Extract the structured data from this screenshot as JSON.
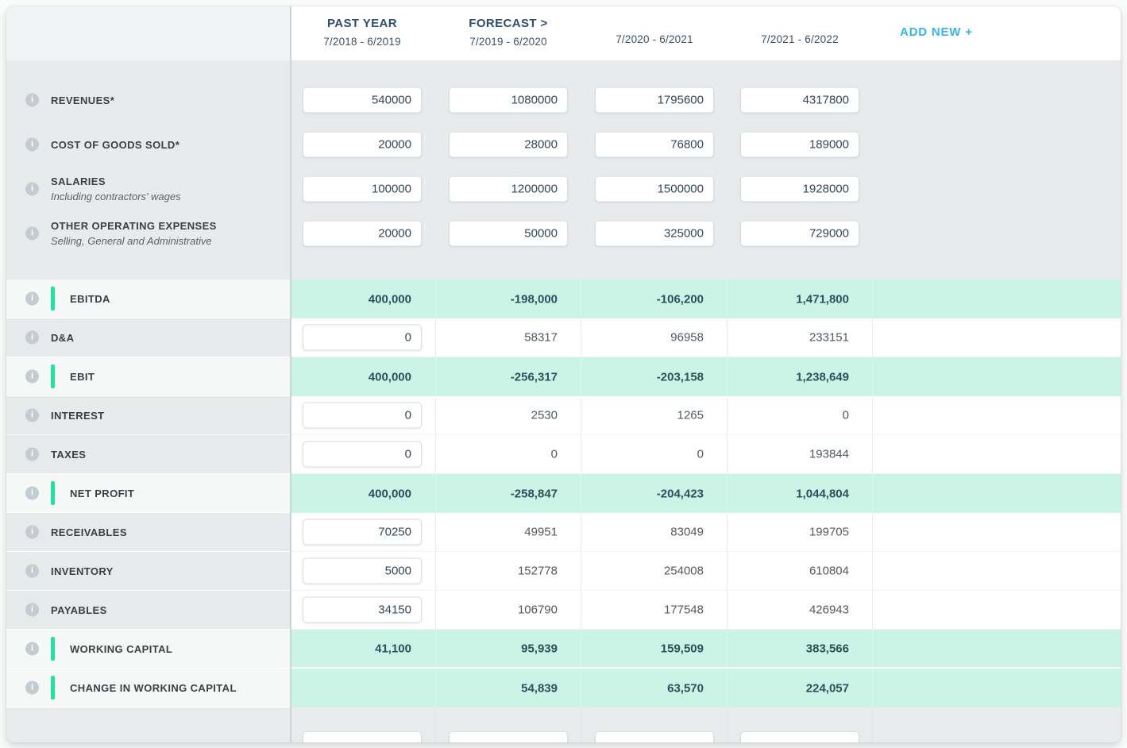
{
  "header": {
    "columns": [
      {
        "title": "PAST YEAR",
        "subtitle": "7/2018 - 6/2019"
      },
      {
        "title": "FORECAST >",
        "subtitle": "7/2019 - 6/2020"
      },
      {
        "title": "",
        "subtitle": "7/2020 - 6/2021"
      },
      {
        "title": "",
        "subtitle": "7/2021 - 6/2022"
      }
    ],
    "add_new_label": "ADD NEW +"
  },
  "colors": {
    "mint_row_bg": "#c9f4e6",
    "computed_accent_bar": "#21e2a2",
    "add_new_cyan": "#38b4e8",
    "header_navy": "#2d4e6e",
    "mint_value_text": "#2e4f5c",
    "section_gray_bg": "#e8ebec",
    "sidebar_highlight_bg": "#f6f8f8"
  },
  "rows": [
    {
      "id": "revenues",
      "label": "REVENUES*",
      "type": "input",
      "values": [
        "540000",
        "1080000",
        "1795600",
        "4317800"
      ]
    },
    {
      "id": "cost-of-goods-sold",
      "label": "COST OF GOODS SOLD*",
      "type": "input",
      "values": [
        "20000",
        "28000",
        "76800",
        "189000"
      ]
    },
    {
      "id": "salaries",
      "label": "SALARIES",
      "sublabel": "Including contractors' wages",
      "type": "input",
      "values": [
        "100000",
        "1200000",
        "1500000",
        "1928000"
      ]
    },
    {
      "id": "other-operating-expenses",
      "label": "OTHER OPERATING EXPENSES",
      "sublabel": "Selling, General and Administrative",
      "type": "input",
      "values": [
        "20000",
        "50000",
        "325000",
        "729000"
      ]
    },
    {
      "id": "ebitda",
      "label": "EBITDA",
      "type": "computed",
      "values": [
        "400,000",
        "-198,000",
        "-106,200",
        "1,471,800"
      ]
    },
    {
      "id": "d-and-a",
      "label": "D&A",
      "type": "mixed",
      "input_value": "0",
      "values": [
        "58317",
        "96958",
        "233151"
      ]
    },
    {
      "id": "ebit",
      "label": "EBIT",
      "type": "computed",
      "values": [
        "400,000",
        "-256,317",
        "-203,158",
        "1,238,649"
      ]
    },
    {
      "id": "interest",
      "label": "INTEREST",
      "type": "mixed",
      "input_value": "0",
      "values": [
        "2530",
        "1265",
        "0"
      ]
    },
    {
      "id": "taxes",
      "label": "TAXES",
      "type": "mixed",
      "input_value": "0",
      "values": [
        "0",
        "0",
        "193844"
      ]
    },
    {
      "id": "net-profit",
      "label": "NET PROFIT",
      "type": "computed",
      "values": [
        "400,000",
        "-258,847",
        "-204,423",
        "1,044,804"
      ]
    },
    {
      "id": "receivables",
      "label": "RECEIVABLES",
      "type": "mixed",
      "input_value": "70250",
      "values": [
        "49951",
        "83049",
        "199705"
      ]
    },
    {
      "id": "inventory",
      "label": "INVENTORY",
      "type": "mixed",
      "input_value": "5000",
      "values": [
        "152778",
        "254008",
        "610804"
      ]
    },
    {
      "id": "payables",
      "label": "PAYABLES",
      "type": "mixed",
      "input_value": "34150",
      "values": [
        "106790",
        "177548",
        "426943"
      ]
    },
    {
      "id": "working-capital",
      "label": "WORKING CAPITAL",
      "type": "computed",
      "values": [
        "41,100",
        "95,939",
        "159,509",
        "383,566"
      ]
    },
    {
      "id": "change-in-working-capital",
      "label": "CHANGE IN WORKING CAPITAL",
      "type": "computed",
      "values": [
        "",
        "54,839",
        "63,570",
        "224,057"
      ]
    }
  ]
}
